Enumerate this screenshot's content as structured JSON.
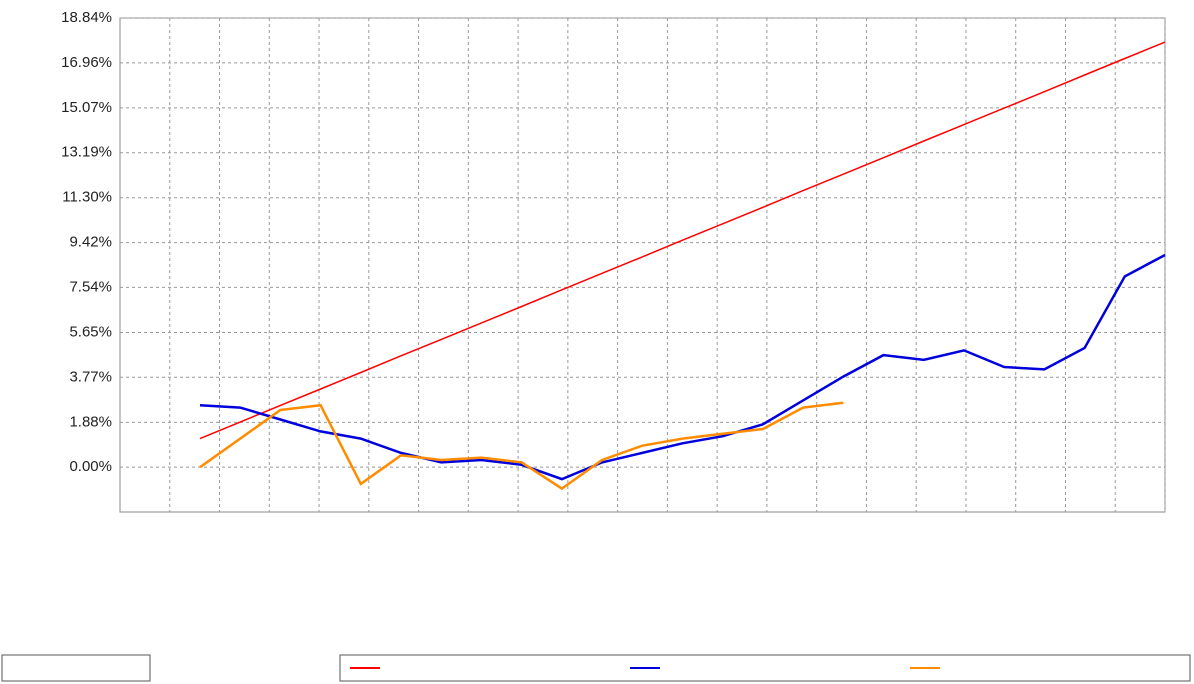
{
  "chart_data": {
    "type": "line",
    "ylim": [
      -1.88,
      18.84
    ],
    "yticks": [
      {
        "value": 0,
        "label": "0.00%"
      },
      {
        "value": 1.88,
        "label": "1.88%"
      },
      {
        "value": 3.77,
        "label": "3.77%"
      },
      {
        "value": 5.65,
        "label": "5.65%"
      },
      {
        "value": 7.54,
        "label": "7.54%"
      },
      {
        "value": 9.42,
        "label": "9.42%"
      },
      {
        "value": 11.3,
        "label": "11.30%"
      },
      {
        "value": 13.19,
        "label": "13.19%"
      },
      {
        "value": 15.07,
        "label": "15.07%"
      },
      {
        "value": 16.96,
        "label": "16.96%"
      },
      {
        "value": 18.84,
        "label": "18.84%"
      }
    ],
    "grid": true,
    "series": [
      {
        "color": "#ff0000",
        "values": [
          1.2,
          1.89,
          2.59,
          3.28,
          3.97,
          4.67,
          5.36,
          6.05,
          6.74,
          7.44,
          8.13,
          8.82,
          9.52,
          10.21,
          10.9,
          11.6,
          12.29,
          12.98,
          13.68,
          14.37,
          15.06,
          15.75,
          16.45,
          17.14,
          17.83
        ]
      },
      {
        "color": "#0000dd",
        "values": [
          2.6,
          2.5,
          2.0,
          1.5,
          1.2,
          0.6,
          0.2,
          0.3,
          0.1,
          -0.5,
          0.2,
          0.6,
          1.0,
          1.3,
          1.8,
          2.8,
          3.8,
          4.7,
          4.5,
          4.9,
          4.2,
          4.1,
          5.0,
          8.0,
          8.9
        ]
      },
      {
        "color": "#ff8c00",
        "values": [
          0,
          1.2,
          2.4,
          2.6,
          -0.7,
          0.5,
          0.3,
          0.4,
          0.2,
          -0.9,
          0.3,
          0.9,
          1.2,
          1.4,
          1.6,
          2.5,
          2.7,
          null,
          null,
          null,
          null,
          null,
          null,
          null,
          null
        ]
      }
    ]
  }
}
